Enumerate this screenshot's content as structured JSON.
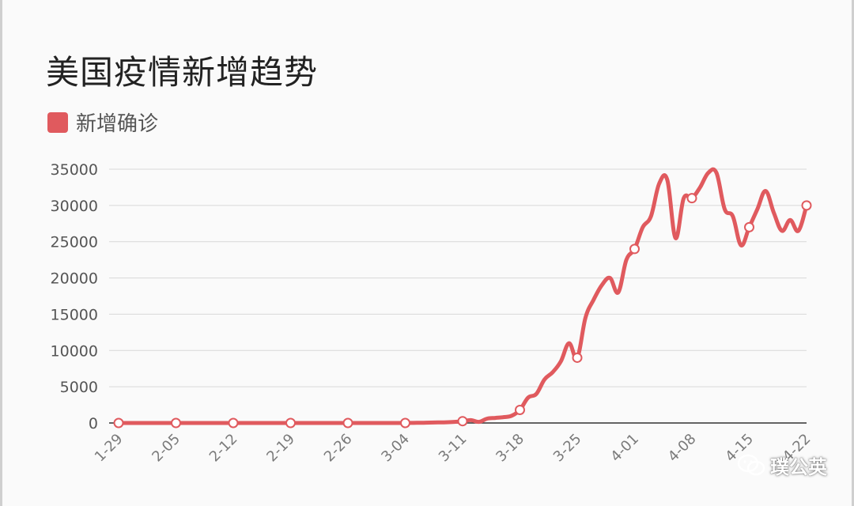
{
  "title": "美国疫情新增趋势",
  "legend": {
    "label": "新增确诊",
    "color": "#e05a5e"
  },
  "watermark": {
    "text": "璞公英",
    "icon": "wechat-icon"
  },
  "chart_data": {
    "type": "line",
    "title": "美国疫情新增趋势",
    "xlabel": "",
    "ylabel": "",
    "ylim": [
      0,
      35000
    ],
    "yticks": [
      0,
      5000,
      10000,
      15000,
      20000,
      25000,
      30000,
      35000
    ],
    "xtick_labels": [
      "1-29",
      "2-05",
      "2-12",
      "2-19",
      "2-26",
      "3-04",
      "3-11",
      "3-18",
      "3-25",
      "4-01",
      "4-08",
      "4-15",
      "4-22"
    ],
    "smooth": true,
    "grid": true,
    "legend_position": "top-left",
    "series": [
      {
        "name": "新增确诊",
        "color": "#e05a5e",
        "marker_every": 7,
        "values": [
          0,
          0,
          0,
          0,
          0,
          0,
          0,
          0,
          0,
          0,
          0,
          0,
          0,
          0,
          0,
          0,
          0,
          0,
          0,
          0,
          0,
          0,
          0,
          0,
          0,
          0,
          0,
          0,
          0,
          0,
          0,
          0,
          0,
          0,
          0,
          0,
          20,
          30,
          60,
          80,
          100,
          150,
          250,
          400,
          150,
          600,
          700,
          800,
          1000,
          1800,
          3500,
          4000,
          6000,
          7000,
          8500,
          11000,
          9000,
          14500,
          17000,
          19000,
          20000,
          18000,
          22500,
          24000,
          27000,
          28500,
          33000,
          33500,
          25500,
          31000,
          31000,
          32500,
          34500,
          34500,
          29500,
          28500,
          24500,
          27000,
          29500,
          32000,
          29000,
          26500,
          28000,
          26500,
          30000
        ]
      }
    ]
  }
}
